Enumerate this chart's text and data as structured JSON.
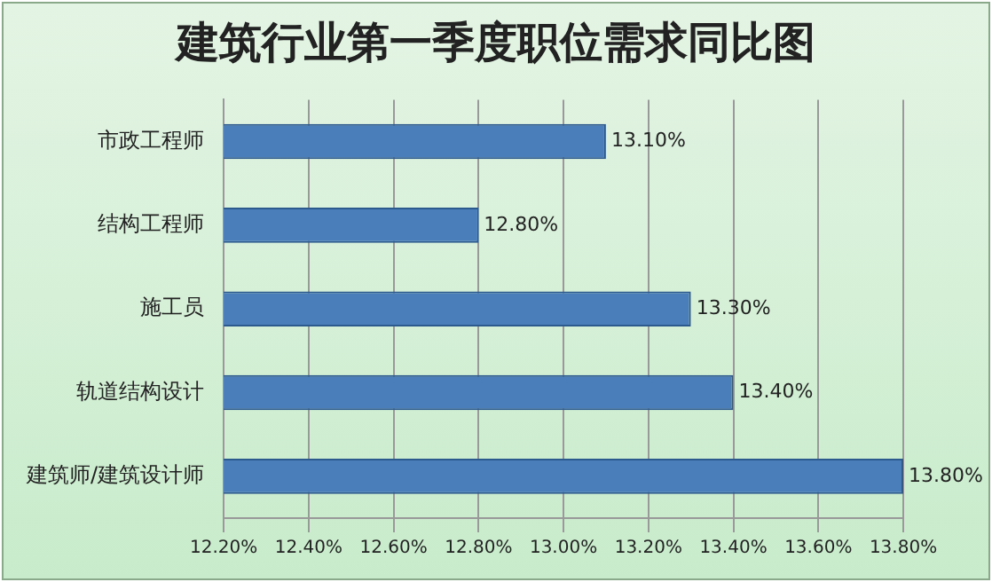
{
  "chart_data": {
    "type": "bar",
    "orientation": "horizontal",
    "title": "建筑行业第一季度职位需求同比图",
    "categories": [
      "市政工程师",
      "结构工程师",
      "施工员",
      "轨道结构设计",
      "建筑师/建筑设计师"
    ],
    "values": [
      13.1,
      12.8,
      13.3,
      13.4,
      13.8
    ],
    "value_labels": [
      "13.10%",
      "12.80%",
      "13.30%",
      "13.40%",
      "13.80%"
    ],
    "color": "#4a7ebb",
    "xlim": [
      12.2,
      13.8
    ],
    "xticks": [
      {
        "value": 12.2,
        "label": "12.20%"
      },
      {
        "value": 12.4,
        "label": "12.40%"
      },
      {
        "value": 12.6,
        "label": "12.60%"
      },
      {
        "value": 12.8,
        "label": "12.80%"
      },
      {
        "value": 13.0,
        "label": "13.00%"
      },
      {
        "value": 13.2,
        "label": "13.20%"
      },
      {
        "value": 13.4,
        "label": "13.40%"
      },
      {
        "value": 13.6,
        "label": "13.60%"
      },
      {
        "value": 13.8,
        "label": "13.80%"
      }
    ],
    "grid": "x",
    "legend": false
  }
}
